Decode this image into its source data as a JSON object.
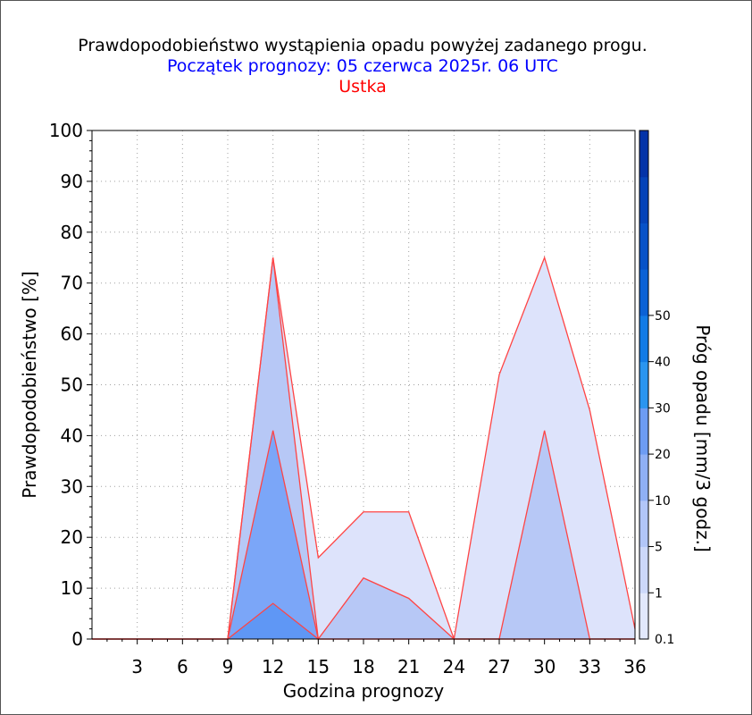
{
  "titles": {
    "line1": "Prawdopodobieństwo wystąpienia opadu powyżej zadanego progu.",
    "line2": "Początek prognozy: 05 czerwca 2025r. 06 UTC",
    "line3": "Ustka"
  },
  "chart_data": {
    "type": "area",
    "xlabel": "Godzina prognozy",
    "ylabel": "Prawdopodobieństwo [%]",
    "x": [
      0,
      3,
      6,
      9,
      12,
      15,
      18,
      21,
      24,
      27,
      30,
      33,
      36
    ],
    "x_tick_labels": [
      "3",
      "6",
      "9",
      "12",
      "15",
      "18",
      "21",
      "24",
      "27",
      "30",
      "33",
      "36"
    ],
    "x_ticks": [
      3,
      6,
      9,
      12,
      15,
      18,
      21,
      24,
      27,
      30,
      33,
      36
    ],
    "xlim": [
      0,
      36
    ],
    "ylim": [
      0,
      100
    ],
    "y_ticks": [
      0,
      10,
      20,
      30,
      40,
      50,
      60,
      70,
      80,
      90,
      100
    ],
    "grid": true,
    "series": [
      {
        "threshold": "0.1",
        "color": "#dde3fb",
        "values": [
          0,
          0,
          0,
          0,
          75,
          16,
          25,
          25,
          0,
          52,
          75,
          45,
          2
        ]
      },
      {
        "threshold": "1",
        "color": "#b7c8f6",
        "values": [
          0,
          0,
          0,
          0,
          75,
          0,
          12,
          8,
          0,
          0,
          41,
          0,
          0
        ]
      },
      {
        "threshold": "5",
        "color": "#7ba6f8",
        "values": [
          0,
          0,
          0,
          0,
          41,
          0,
          0,
          0,
          0,
          0,
          0,
          0,
          0
        ]
      },
      {
        "threshold": "10",
        "color": "#5f97f5",
        "values": [
          0,
          0,
          0,
          0,
          7,
          0,
          0,
          0,
          0,
          0,
          0,
          0,
          0
        ]
      }
    ],
    "colorbar": {
      "title": "Próg opadu [mm/3 godz.]",
      "labels": [
        "0.1",
        "1",
        "5",
        "10",
        "20",
        "30",
        "40",
        "50"
      ],
      "bands": [
        "#e2e8fc",
        "#ccd8fa",
        "#b2c6f8",
        "#8fb0f5",
        "#6d9cf3",
        "#2a95f0",
        "#127be6",
        "#0b62d6",
        "#0752c8",
        "#0543b8",
        "#0333a8"
      ]
    },
    "line_color": "#ff4444"
  }
}
